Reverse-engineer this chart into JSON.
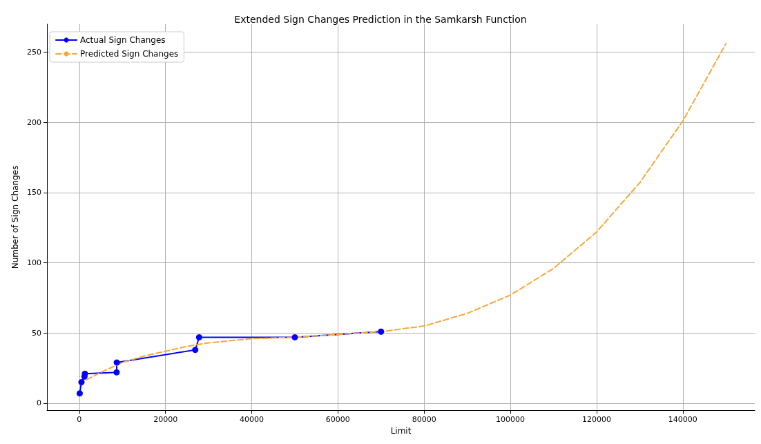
{
  "chart_data": {
    "type": "line",
    "title": "Extended Sign Changes Prediction in the Samkarsh Function",
    "xlabel": "Limit",
    "ylabel": "Number of Sign Changes",
    "xlim": [
      -7500,
      156700
    ],
    "ylim": [
      -5,
      270
    ],
    "xticks": [
      0,
      20000,
      40000,
      60000,
      80000,
      100000,
      120000,
      140000
    ],
    "yticks": [
      0,
      50,
      100,
      150,
      200,
      250
    ],
    "grid": true,
    "legend": "top left",
    "series": [
      {
        "name": "Actual Sign Changes",
        "color": "#0000ff",
        "marker": "circle",
        "line_style": "solid",
        "x": [
          100,
          500,
          1200,
          1300,
          8660,
          8700,
          26900,
          27800,
          50000,
          70000
        ],
        "values": [
          7,
          15,
          19,
          21,
          22,
          29,
          38,
          47,
          47,
          51
        ]
      },
      {
        "name": "Predicted Sign Changes",
        "color": "#f5a83a",
        "marker": "none",
        "line_style": "dashed",
        "x": [
          0,
          5000,
          10000,
          15000,
          20000,
          25000,
          30000,
          40000,
          50000,
          60000,
          70000,
          80000,
          90000,
          100000,
          110000,
          120000,
          130000,
          140000,
          150000
        ],
        "values": [
          14,
          22,
          29,
          33.5,
          37,
          40.5,
          43,
          46,
          47,
          49,
          51,
          55,
          64,
          77,
          96,
          122,
          157,
          201,
          256
        ]
      }
    ]
  }
}
